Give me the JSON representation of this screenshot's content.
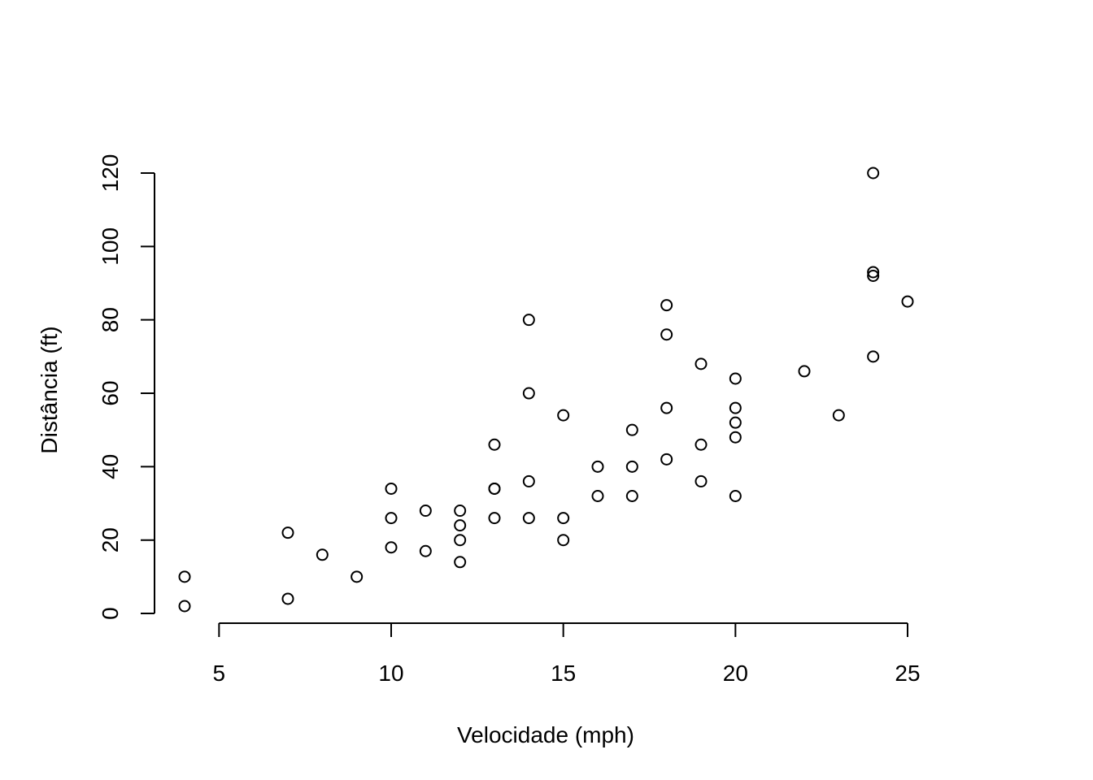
{
  "chart_data": {
    "type": "scatter",
    "title": "",
    "xlabel": "Velocidade (mph)",
    "ylabel": "Distância (ft)",
    "xlim": [
      4,
      25
    ],
    "ylim": [
      2,
      120
    ],
    "x_ticks": [
      5,
      10,
      15,
      20,
      25
    ],
    "y_ticks": [
      0,
      20,
      40,
      60,
      80,
      100,
      120
    ],
    "grid": false,
    "legend": "none",
    "marker": "open-circle",
    "point_color": "#000000",
    "points": [
      {
        "x": 4,
        "y": 2
      },
      {
        "x": 4,
        "y": 10
      },
      {
        "x": 7,
        "y": 4
      },
      {
        "x": 7,
        "y": 22
      },
      {
        "x": 8,
        "y": 16
      },
      {
        "x": 9,
        "y": 10
      },
      {
        "x": 10,
        "y": 18
      },
      {
        "x": 10,
        "y": 26
      },
      {
        "x": 10,
        "y": 34
      },
      {
        "x": 11,
        "y": 17
      },
      {
        "x": 11,
        "y": 28
      },
      {
        "x": 12,
        "y": 14
      },
      {
        "x": 12,
        "y": 20
      },
      {
        "x": 12,
        "y": 24
      },
      {
        "x": 12,
        "y": 28
      },
      {
        "x": 13,
        "y": 26
      },
      {
        "x": 13,
        "y": 34
      },
      {
        "x": 13,
        "y": 34
      },
      {
        "x": 13,
        "y": 46
      },
      {
        "x": 14,
        "y": 26
      },
      {
        "x": 14,
        "y": 36
      },
      {
        "x": 14,
        "y": 60
      },
      {
        "x": 14,
        "y": 80
      },
      {
        "x": 15,
        "y": 20
      },
      {
        "x": 15,
        "y": 26
      },
      {
        "x": 15,
        "y": 54
      },
      {
        "x": 16,
        "y": 32
      },
      {
        "x": 16,
        "y": 40
      },
      {
        "x": 17,
        "y": 32
      },
      {
        "x": 17,
        "y": 40
      },
      {
        "x": 17,
        "y": 50
      },
      {
        "x": 18,
        "y": 42
      },
      {
        "x": 18,
        "y": 56
      },
      {
        "x": 18,
        "y": 76
      },
      {
        "x": 18,
        "y": 84
      },
      {
        "x": 19,
        "y": 36
      },
      {
        "x": 19,
        "y": 46
      },
      {
        "x": 19,
        "y": 68
      },
      {
        "x": 20,
        "y": 32
      },
      {
        "x": 20,
        "y": 48
      },
      {
        "x": 20,
        "y": 52
      },
      {
        "x": 20,
        "y": 56
      },
      {
        "x": 20,
        "y": 64
      },
      {
        "x": 22,
        "y": 66
      },
      {
        "x": 23,
        "y": 54
      },
      {
        "x": 24,
        "y": 70
      },
      {
        "x": 24,
        "y": 92
      },
      {
        "x": 24,
        "y": 93
      },
      {
        "x": 24,
        "y": 120
      },
      {
        "x": 25,
        "y": 85
      }
    ]
  }
}
